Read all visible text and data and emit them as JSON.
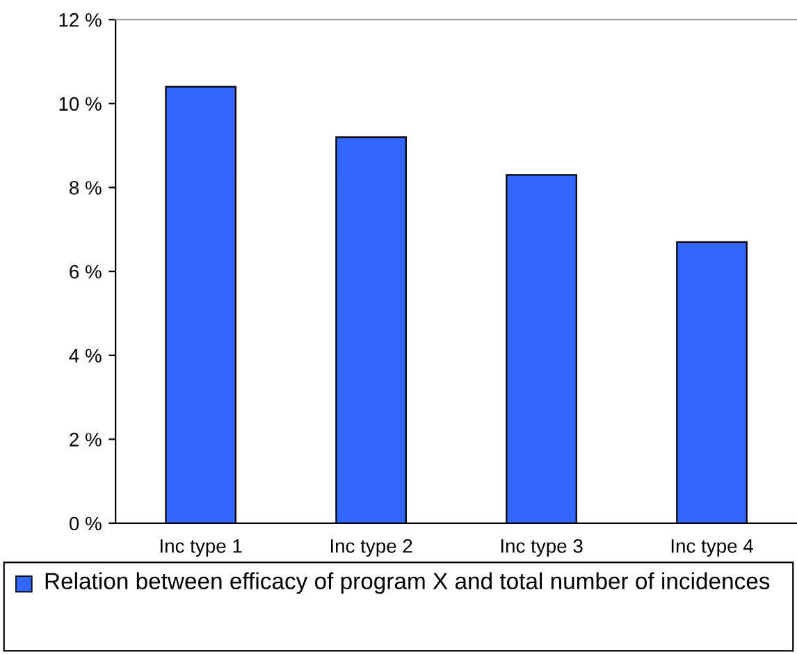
{
  "chart_data": {
    "type": "bar",
    "categories": [
      "Inc type 1",
      "Inc type 2",
      "Inc type 3",
      "Inc type 4"
    ],
    "series": [
      {
        "name": "Relation between efficacy of program X and total number of incidences",
        "color": "#3366ff",
        "values": [
          10.4,
          9.2,
          8.3,
          6.7
        ]
      }
    ],
    "ylim": [
      0,
      12
    ],
    "yticks": [
      {
        "value": 0,
        "label": "0 %"
      },
      {
        "value": 2,
        "label": "2 %"
      },
      {
        "value": 4,
        "label": "4 %"
      },
      {
        "value": 6,
        "label": "6 %"
      },
      {
        "value": 8,
        "label": "8 %"
      },
      {
        "value": 10,
        "label": "10 %"
      },
      {
        "value": 12,
        "label": "12 %"
      }
    ],
    "legend": "bottom"
  }
}
